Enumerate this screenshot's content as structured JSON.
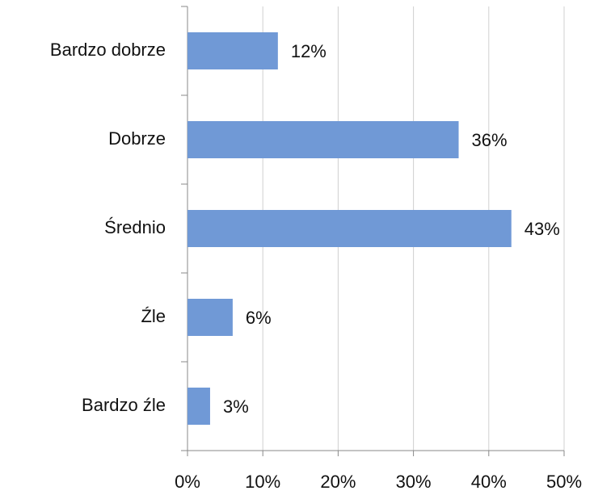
{
  "chart_data": {
    "type": "bar",
    "orientation": "horizontal",
    "categories": [
      "Bardzo dobrze",
      "Dobrze",
      "Średnio",
      "Źle",
      "Bardzo źle"
    ],
    "values": [
      12,
      36,
      43,
      6,
      3
    ],
    "value_labels": [
      "12%",
      "36%",
      "43%",
      "6%",
      "3%"
    ],
    "color": "#7099d6",
    "xlim": [
      0,
      50
    ],
    "xticks": [
      {
        "value": 0,
        "label": "0%"
      },
      {
        "value": 10,
        "label": "10%"
      },
      {
        "value": 20,
        "label": "20%"
      },
      {
        "value": 30,
        "label": "30%"
      },
      {
        "value": 40,
        "label": "40%"
      },
      {
        "value": 50,
        "label": "50%"
      }
    ],
    "grid": true
  }
}
